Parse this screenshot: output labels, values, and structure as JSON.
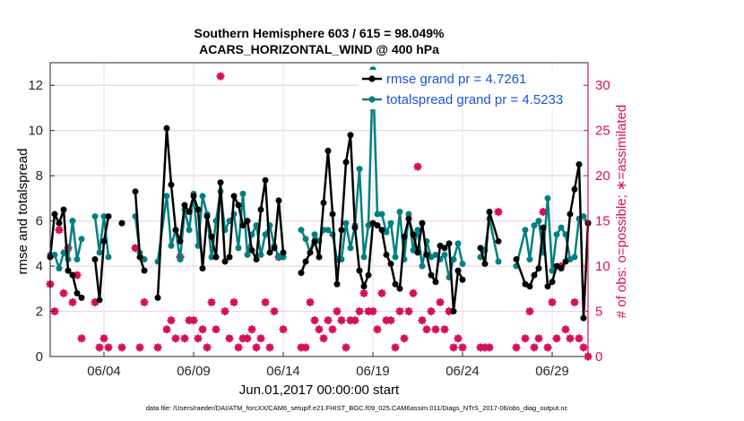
{
  "chart_data": {
    "type": "line",
    "title": "Southern Hemisphere 603 / 615 = 98.049%",
    "subtitle": "ACARS_HORIZONTAL_WIND @ 400 hPa",
    "xlabel": "Jun.01,2017 00:00:00 start",
    "ylabel_left": "rmse and totalspread",
    "ylabel_right": "# of obs: o=possible; ∗=assimilated",
    "footer": "data file: /Users/raeder/DAI/ATM_forcXX/CAM6_setup/f.e21.FHIST_BGC.f09_025.CAM6assim.011/Diags_NTrS_2017-06/obs_diag_output.nc",
    "x_unit": "days since Jun.01,2017 00:00:00",
    "xlim": [
      0.0,
      30.0
    ],
    "ylim_left": [
      0,
      13
    ],
    "ylim_right": [
      0,
      32.5
    ],
    "x_ticks": [
      3.0,
      8.0,
      13.0,
      18.0,
      23.0,
      28.0
    ],
    "x_tick_labels": [
      "06/04",
      "06/09",
      "06/14",
      "06/19",
      "06/24",
      "06/29"
    ],
    "y_ticks_left": [
      0,
      2,
      4,
      6,
      8,
      10,
      12
    ],
    "y_ticks_right": [
      0,
      5,
      10,
      15,
      20,
      25,
      30
    ],
    "grid": true,
    "legend_position": "top-right",
    "colors": {
      "rmse": "#000000",
      "spread": "#008080",
      "obs": "#d6105a"
    },
    "series": [
      {
        "name": "rmse grand pr = 4.7261",
        "axis": "left",
        "color": "#000000",
        "x": [
          0.0,
          0.25,
          0.5,
          0.75,
          1.0,
          1.25,
          1.5,
          1.75,
          2.5,
          2.75,
          3.0,
          3.25,
          4.0,
          4.75,
          5.0,
          5.25,
          6.0,
          6.5,
          6.75,
          7.0,
          7.25,
          7.5,
          7.75,
          8.0,
          8.25,
          8.5,
          8.75,
          9.0,
          9.25,
          9.5,
          9.75,
          10.0,
          10.25,
          10.5,
          10.75,
          11.0,
          11.25,
          11.5,
          11.75,
          12.0,
          12.25,
          12.5,
          12.75,
          13.0,
          14.0,
          14.25,
          14.5,
          14.75,
          15.0,
          15.25,
          15.5,
          15.75,
          16.0,
          16.25,
          16.5,
          16.75,
          17.0,
          17.25,
          17.5,
          17.75,
          18.0,
          18.25,
          18.5,
          18.75,
          19.0,
          19.25,
          19.5,
          19.75,
          20.0,
          20.25,
          20.5,
          20.75,
          21.0,
          21.25,
          21.5,
          21.75,
          22.0,
          22.25,
          22.5,
          22.75,
          23.0,
          24.0,
          24.25,
          24.5,
          25.0,
          26.0,
          26.5,
          26.75,
          27.0,
          27.25,
          27.5,
          27.75,
          28.0,
          28.25,
          28.5,
          28.75,
          29.0,
          29.25,
          29.5,
          29.75,
          30.0
        ],
        "values": [
          4.4,
          6.3,
          5.9,
          6.5,
          3.8,
          3.6,
          2.8,
          2.6,
          4.3,
          2.5,
          5.1,
          6.2,
          5.9,
          7.3,
          4.4,
          3.8,
          2.6,
          10.1,
          7.6,
          5.6,
          5.1,
          6.7,
          6.4,
          7.1,
          6.5,
          3.9,
          6.2,
          5.3,
          4.4,
          7.7,
          4.2,
          4.4,
          7.1,
          6.7,
          5.8,
          6.0,
          4.7,
          4.3,
          6.5,
          7.8,
          4.6,
          4.8,
          6.9,
          4.6,
          3.7,
          4.2,
          4.6,
          5.1,
          4.4,
          6.8,
          9.1,
          6.3,
          3.2,
          5.6,
          8.6,
          9.8,
          5.7,
          3.8,
          3.1,
          3.6,
          5.9,
          5.8,
          5.6,
          4.5,
          4.1,
          3.2,
          3.0,
          5.3,
          6.1,
          5.4,
          4.6,
          5.9,
          4.5,
          3.6,
          3.3,
          4.9,
          4.8,
          5.0,
          2.0,
          3.8,
          3.4,
          4.8,
          4.1,
          6.4,
          5.1,
          4.3,
          3.2,
          3.1,
          3.6,
          3.9,
          5.7,
          3.1,
          3.3,
          4.0,
          3.9,
          4.2,
          6.3,
          7.4,
          8.5,
          1.7,
          5.9
        ]
      },
      {
        "name": "totalspread grand pr = 4.5233",
        "axis": "left",
        "color": "#008080",
        "x": [
          0.0,
          0.25,
          0.5,
          0.75,
          1.0,
          1.25,
          1.5,
          1.75,
          2.5,
          2.75,
          3.0,
          3.25,
          4.0,
          4.75,
          5.0,
          5.25,
          6.0,
          6.5,
          6.75,
          7.0,
          7.25,
          7.5,
          7.75,
          8.0,
          8.25,
          8.5,
          8.75,
          9.0,
          9.25,
          9.5,
          9.75,
          10.0,
          10.25,
          10.5,
          10.75,
          11.0,
          11.25,
          11.5,
          11.75,
          12.0,
          12.25,
          12.5,
          12.75,
          13.0,
          14.0,
          14.25,
          14.5,
          14.75,
          15.0,
          15.25,
          15.5,
          15.75,
          16.0,
          16.25,
          16.5,
          16.75,
          17.0,
          17.25,
          17.5,
          17.75,
          18.0,
          18.25,
          18.5,
          18.75,
          19.0,
          19.25,
          19.5,
          19.75,
          20.0,
          20.25,
          20.5,
          20.75,
          21.0,
          21.25,
          21.5,
          21.75,
          22.0,
          22.25,
          22.5,
          22.75,
          23.0,
          24.0,
          24.25,
          24.5,
          25.0,
          26.0,
          26.5,
          26.75,
          27.0,
          27.25,
          27.5,
          27.75,
          28.0,
          28.25,
          28.5,
          28.75,
          29.0,
          29.25,
          29.5,
          29.75,
          30.0
        ],
        "values": [
          4.5,
          4.5,
          3.9,
          4.6,
          4.3,
          6.0,
          4.3,
          5.2,
          6.2,
          4.6,
          6.2,
          4.4,
          5.9,
          6.2,
          4.6,
          4.3,
          4.2,
          7.1,
          4.9,
          5.6,
          4.3,
          6.5,
          5.6,
          7.2,
          4.9,
          7.1,
          6.3,
          4.4,
          6.0,
          7.3,
          5.6,
          6.0,
          6.3,
          4.8,
          7.2,
          4.5,
          5.4,
          5.8,
          4.5,
          5.4,
          5.8,
          4.9,
          4.4,
          4.4,
          5.6,
          5.2,
          4.6,
          5.4,
          5.1,
          5.6,
          5.6,
          5.4,
          4.3,
          4.3,
          5.9,
          4.8,
          5.8,
          8.3,
          4.4,
          5.8,
          12.7,
          6.3,
          6.3,
          5.5,
          5.9,
          4.4,
          6.4,
          4.3,
          6.3,
          4.7,
          5.6,
          4.0,
          5.1,
          4.4,
          4.5,
          4.3,
          4.5,
          3.5,
          4.3,
          5.0,
          4.1,
          4.4,
          4.7,
          6.1,
          4.2,
          4.0,
          5.6,
          4.3,
          5.8,
          6.0,
          4.6,
          7.0,
          3.8,
          5.4,
          5.7,
          5.4,
          4.3,
          4.4,
          6.1,
          6.2,
          5.9
        ]
      },
      {
        "name": "obs assimilated",
        "axis": "right",
        "color": "#d6105a",
        "x": [
          0.0,
          0.25,
          0.5,
          0.75,
          1.0,
          1.25,
          1.5,
          1.75,
          2.5,
          2.75,
          3.0,
          3.25,
          4.0,
          4.75,
          5.0,
          5.25,
          6.0,
          6.5,
          6.75,
          7.0,
          7.25,
          7.5,
          7.75,
          8.0,
          8.25,
          8.5,
          8.75,
          9.0,
          9.25,
          9.5,
          9.75,
          10.0,
          10.25,
          10.5,
          10.75,
          11.0,
          11.25,
          11.5,
          11.75,
          12.0,
          12.25,
          12.5,
          12.75,
          13.0,
          14.0,
          14.25,
          14.5,
          14.75,
          15.0,
          15.25,
          15.5,
          15.75,
          16.0,
          16.25,
          16.5,
          16.75,
          17.0,
          17.25,
          17.5,
          17.75,
          18.0,
          18.25,
          18.5,
          18.75,
          19.0,
          19.25,
          19.5,
          19.75,
          20.0,
          20.25,
          20.5,
          20.75,
          21.0,
          21.25,
          21.5,
          21.75,
          22.0,
          22.25,
          22.5,
          22.75,
          23.0,
          24.0,
          24.25,
          24.5,
          25.0,
          26.0,
          26.5,
          26.75,
          27.0,
          27.25,
          27.5,
          27.75,
          28.0,
          28.25,
          28.5,
          28.75,
          29.0,
          29.25,
          29.5,
          29.75,
          30.0
        ],
        "values": [
          8,
          5,
          14,
          7,
          12,
          6,
          9,
          2,
          6,
          1,
          2,
          1,
          1,
          12,
          1,
          6,
          1,
          3,
          4,
          2,
          11,
          2,
          4,
          4,
          2,
          3,
          1,
          6,
          3,
          31,
          5,
          2,
          6,
          1,
          2,
          2,
          3,
          1,
          2,
          6,
          1,
          5,
          11,
          3,
          1,
          1,
          6,
          4,
          3,
          2,
          4,
          3,
          5,
          4,
          1,
          4,
          4,
          5,
          7,
          5,
          5,
          3,
          7,
          4,
          4,
          1,
          5,
          2,
          5,
          7,
          21,
          4,
          3,
          5,
          3,
          6,
          3,
          5,
          1,
          2,
          1,
          1,
          1,
          1,
          16,
          1,
          2,
          5,
          1,
          2,
          16,
          1,
          6,
          2,
          10,
          3,
          2,
          6,
          2,
          1,
          0
        ]
      },
      {
        "name": "obs possible",
        "axis": "right",
        "color": "#d6105a",
        "x": [
          0.0,
          0.25,
          0.5,
          0.75,
          1.0,
          1.25,
          1.5,
          1.75,
          2.5,
          2.75,
          3.0,
          3.25,
          4.0,
          4.75,
          5.0,
          5.25,
          6.0,
          6.5,
          6.75,
          7.0,
          7.25,
          7.5,
          7.75,
          8.0,
          8.25,
          8.5,
          8.75,
          9.0,
          9.25,
          9.5,
          9.75,
          10.0,
          10.25,
          10.5,
          10.75,
          11.0,
          11.25,
          11.5,
          11.75,
          12.0,
          12.25,
          12.5,
          12.75,
          13.0,
          14.0,
          14.25,
          14.5,
          14.75,
          15.0,
          15.25,
          15.5,
          15.75,
          16.0,
          16.25,
          16.5,
          16.75,
          17.0,
          17.25,
          17.5,
          17.75,
          18.0,
          18.25,
          18.5,
          18.75,
          19.0,
          19.25,
          19.5,
          19.75,
          20.0,
          20.25,
          20.5,
          20.75,
          21.0,
          21.25,
          21.5,
          21.75,
          22.0,
          22.25,
          22.5,
          22.75,
          23.0,
          24.0,
          24.25,
          24.5,
          25.0,
          26.0,
          26.5,
          26.75,
          27.0,
          27.25,
          27.5,
          27.75,
          28.0,
          28.25,
          28.5,
          28.75,
          29.0,
          29.25,
          29.5,
          29.75,
          30.0
        ],
        "values": [
          8,
          5,
          14,
          7,
          12,
          6,
          9,
          2,
          6,
          1,
          2,
          1,
          1,
          12,
          1,
          6,
          1,
          3,
          4,
          2,
          11,
          2,
          4,
          4,
          2,
          3,
          1,
          6,
          3,
          31,
          5,
          2,
          6,
          1,
          2,
          2,
          3,
          1,
          2,
          6,
          1,
          5,
          11,
          3,
          1,
          1,
          6,
          4,
          3,
          2,
          4,
          3,
          5,
          4,
          1,
          4,
          4,
          5,
          7,
          5,
          5,
          3,
          7,
          4,
          4,
          1,
          5,
          2,
          5,
          7,
          21,
          4,
          3,
          5,
          3,
          6,
          3,
          5,
          1,
          2,
          1,
          1,
          1,
          1,
          16,
          1,
          2,
          5,
          1,
          2,
          16,
          1,
          6,
          2,
          10,
          3,
          2,
          6,
          2,
          1,
          0
        ]
      }
    ]
  }
}
